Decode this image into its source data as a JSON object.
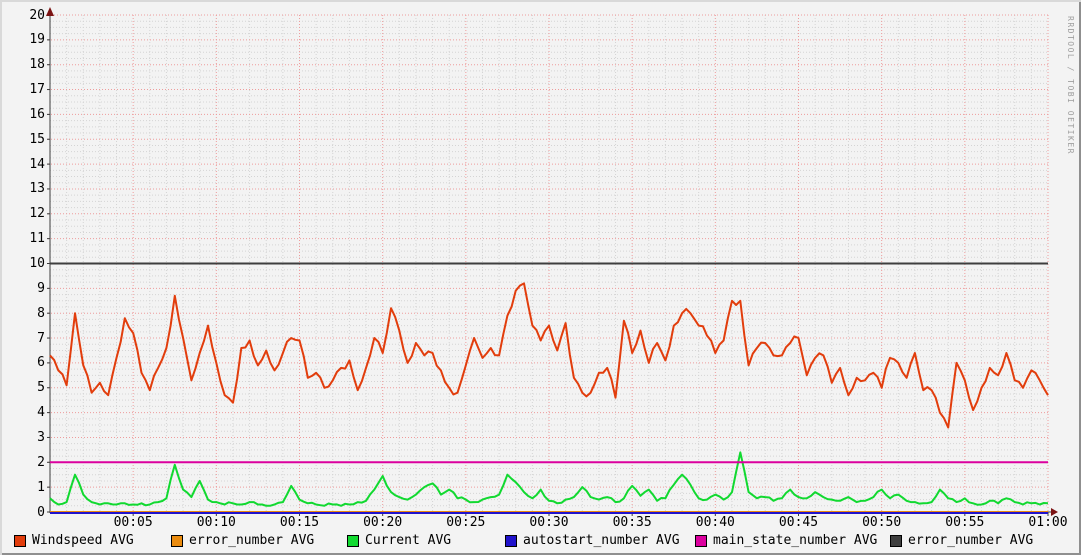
{
  "window": {
    "watermark": "RRDTOOL / TOBI OETIKER"
  },
  "chart_data": {
    "type": "line",
    "title": "",
    "xlabel": "",
    "ylabel": "",
    "grid": true,
    "legend_position": "bottom",
    "x_axis": {
      "unit": "time",
      "start": "00:00",
      "end": "01:00",
      "tick_labels": [
        "00:05",
        "00:10",
        "00:15",
        "00:20",
        "00:25",
        "00:30",
        "00:35",
        "00:40",
        "00:45",
        "00:50",
        "00:55",
        "01:00"
      ],
      "tick_minutes": [
        5,
        10,
        15,
        20,
        25,
        30,
        35,
        40,
        45,
        50,
        55,
        60
      ],
      "minor_grid_step_minutes": 1,
      "major_grid_step_minutes": 5
    },
    "y_axis": {
      "min": 0,
      "max": 20,
      "tick_labels": [
        "0",
        "1",
        "2",
        "3",
        "4",
        "5",
        "6",
        "7",
        "8",
        "9",
        "10",
        "11",
        "12",
        "13",
        "14",
        "15",
        "16",
        "17",
        "18",
        "19",
        "20"
      ],
      "major_grid_step": 1,
      "minor_grid_step": 0.25
    },
    "sample_step_minutes": 0.5,
    "series": [
      {
        "name": "Windspeed AVG",
        "color": "#E23D0C",
        "kind": "line",
        "values": [
          6.3,
          5.7,
          5.1,
          8.0,
          5.9,
          4.8,
          5.2,
          4.7,
          6.2,
          7.8,
          7.2,
          5.6,
          4.9,
          5.8,
          6.6,
          8.7,
          7.0,
          5.3,
          6.4,
          7.5,
          6.0,
          4.7,
          4.4,
          6.6,
          6.9,
          5.9,
          6.5,
          5.7,
          6.4,
          7.0,
          6.9,
          5.4,
          5.6,
          5.0,
          5.3,
          5.8,
          6.1,
          4.9,
          5.8,
          7.0,
          6.4,
          8.2,
          7.3,
          6.0,
          6.8,
          6.3,
          6.4,
          5.7,
          5.0,
          4.8,
          5.9,
          7.0,
          6.2,
          6.6,
          6.3,
          7.9,
          8.9,
          9.2,
          7.5,
          6.9,
          7.5,
          6.5,
          7.6,
          5.4,
          4.8,
          4.8,
          5.6,
          5.8,
          4.6,
          7.7,
          6.4,
          7.3,
          6.0,
          6.8,
          6.1,
          7.5,
          8.0,
          8.0,
          7.5,
          7.1,
          6.4,
          6.9,
          8.5,
          8.5,
          5.9,
          6.6,
          6.8,
          6.3,
          6.3,
          6.8,
          7.0,
          5.5,
          6.2,
          6.3,
          5.2,
          5.8,
          4.7,
          5.4,
          5.3,
          5.6,
          5.0,
          6.2,
          6.0,
          5.4,
          6.4,
          4.9,
          4.9,
          4.0,
          3.4,
          6.0,
          5.3,
          4.1,
          5.0,
          5.8,
          5.5,
          6.4,
          5.3,
          5.0,
          5.7,
          5.3,
          4.7
        ]
      },
      {
        "name": "error_number AVG",
        "color": "#EA8B0E",
        "kind": "hrule",
        "value": 0
      },
      {
        "name": "Current AVG",
        "color": "#11D930",
        "kind": "line",
        "values": [
          0.55,
          0.3,
          0.4,
          1.5,
          0.7,
          0.4,
          0.3,
          0.35,
          0.3,
          0.35,
          0.3,
          0.35,
          0.3,
          0.4,
          0.55,
          1.9,
          0.9,
          0.6,
          1.25,
          0.5,
          0.4,
          0.3,
          0.35,
          0.3,
          0.4,
          0.3,
          0.25,
          0.3,
          0.4,
          1.05,
          0.5,
          0.35,
          0.3,
          0.25,
          0.3,
          0.25,
          0.3,
          0.4,
          0.45,
          0.9,
          1.45,
          0.8,
          0.6,
          0.5,
          0.7,
          1.0,
          1.15,
          0.7,
          0.9,
          0.55,
          0.5,
          0.4,
          0.5,
          0.6,
          0.7,
          1.5,
          1.2,
          0.8,
          0.55,
          0.9,
          0.45,
          0.35,
          0.5,
          0.6,
          1.0,
          0.6,
          0.5,
          0.6,
          0.4,
          0.55,
          1.05,
          0.65,
          0.9,
          0.45,
          0.55,
          1.1,
          1.5,
          1.1,
          0.55,
          0.5,
          0.7,
          0.5,
          0.8,
          2.4,
          0.8,
          0.55,
          0.6,
          0.45,
          0.55,
          0.9,
          0.6,
          0.55,
          0.8,
          0.6,
          0.5,
          0.45,
          0.6,
          0.4,
          0.45,
          0.6,
          0.9,
          0.55,
          0.7,
          0.45,
          0.4,
          0.35,
          0.4,
          0.9,
          0.55,
          0.4,
          0.55,
          0.35,
          0.3,
          0.45,
          0.35,
          0.55,
          0.4,
          0.3,
          0.35,
          0.3,
          0.35
        ]
      },
      {
        "name": "autostart_number AVG",
        "color": "#2012CB",
        "kind": "hrule",
        "value": 0
      },
      {
        "name": "main_state_number AVG",
        "color": "#DB009E",
        "kind": "hrule",
        "value": 2
      },
      {
        "name": "error_number AVG",
        "color": "#3E3E3E",
        "kind": "hrule",
        "value": 10
      }
    ]
  }
}
